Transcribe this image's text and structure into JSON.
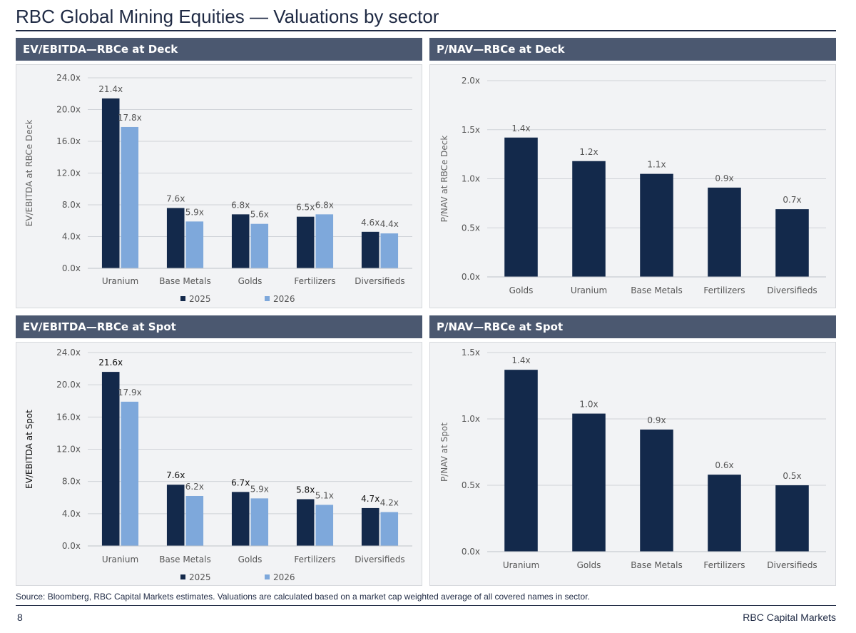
{
  "page": {
    "title": "RBC Global Mining Equities — Valuations by sector",
    "source_note": "Source: Bloomberg, RBC Capital Markets estimates. Valuations are calculated based on a market cap weighted average of all covered names in sector.",
    "page_number": "8",
    "brand": "RBC Capital Markets"
  },
  "colors": {
    "dark": "#13294b",
    "light": "#7ea8db",
    "header": "#4b5870",
    "panel": "#f2f3f5"
  },
  "chart_data": [
    {
      "id": "ev-deck",
      "header": "EV/EBITDA—RBCe at Deck",
      "type": "bar",
      "ylabel": "EV/EBITDA at RBCe Deck",
      "ylim": [
        0,
        24
      ],
      "yticks": [
        "0.0x",
        "4.0x",
        "8.0x",
        "12.0x",
        "16.0x",
        "20.0x",
        "24.0x"
      ],
      "categories": [
        "Uranium",
        "Base Metals",
        "Golds",
        "Fertilizers",
        "Diversifieds"
      ],
      "series": [
        {
          "name": "2025",
          "values": [
            21.4,
            7.6,
            6.8,
            6.5,
            4.6
          ],
          "labels": [
            "21.4x",
            "7.6x",
            "6.8x",
            "6.5x",
            "4.6x"
          ]
        },
        {
          "name": "2026",
          "values": [
            17.8,
            5.9,
            5.6,
            6.8,
            4.4
          ],
          "labels": [
            "17.8x",
            "5.9x",
            "5.6x",
            "6.8x",
            "4.4x"
          ]
        }
      ],
      "legend": "bottom"
    },
    {
      "id": "pnav-deck",
      "header": "P/NAV—RBCe at Deck",
      "type": "bar",
      "ylabel": "P/NAV at RBCe Deck",
      "ylim": [
        0,
        2
      ],
      "yticks": [
        "0.0x",
        "0.5x",
        "1.0x",
        "1.5x",
        "2.0x"
      ],
      "categories": [
        "Golds",
        "Uranium",
        "Base Metals",
        "Fertilizers",
        "Diversifieds"
      ],
      "series": [
        {
          "name": "",
          "values": [
            1.42,
            1.18,
            1.05,
            0.91,
            0.69
          ],
          "labels": [
            "1.4x",
            "1.2x",
            "1.1x",
            "0.9x",
            "0.7x"
          ]
        }
      ]
    },
    {
      "id": "ev-spot",
      "header": "EV/EBITDA—RBCe at Spot",
      "type": "bar",
      "ylabel": "EV/EBITDA at Spot",
      "ylim": [
        0,
        24
      ],
      "yticks": [
        "0.0x",
        "4.0x",
        "8.0x",
        "12.0x",
        "16.0x",
        "20.0x",
        "24.0x"
      ],
      "categories": [
        "Uranium",
        "Base Metals",
        "Golds",
        "Fertilizers",
        "Diversifieds"
      ],
      "series": [
        {
          "name": "2025",
          "values": [
            21.6,
            7.6,
            6.7,
            5.8,
            4.7
          ],
          "labels": [
            "21.6x",
            "7.6x",
            "6.7x",
            "5.8x",
            "4.7x"
          ]
        },
        {
          "name": "2026",
          "values": [
            17.9,
            6.2,
            5.9,
            5.1,
            4.2
          ],
          "labels": [
            "17.9x",
            "6.2x",
            "5.9x",
            "5.1x",
            "4.2x"
          ]
        }
      ],
      "legend": "bottom"
    },
    {
      "id": "pnav-spot",
      "header": "P/NAV—RBCe at Spot",
      "type": "bar",
      "ylabel": "P/NAV at Spot",
      "ylim": [
        0,
        1.5
      ],
      "yticks": [
        "0.0x",
        "0.5x",
        "1.0x",
        "1.5x"
      ],
      "categories": [
        "Uranium",
        "Golds",
        "Base Metals",
        "Fertilizers",
        "Diversifieds"
      ],
      "series": [
        {
          "name": "",
          "values": [
            1.37,
            1.04,
            0.92,
            0.58,
            0.5
          ],
          "labels": [
            "1.4x",
            "1.0x",
            "0.9x",
            "0.6x",
            "0.5x"
          ]
        }
      ]
    }
  ]
}
